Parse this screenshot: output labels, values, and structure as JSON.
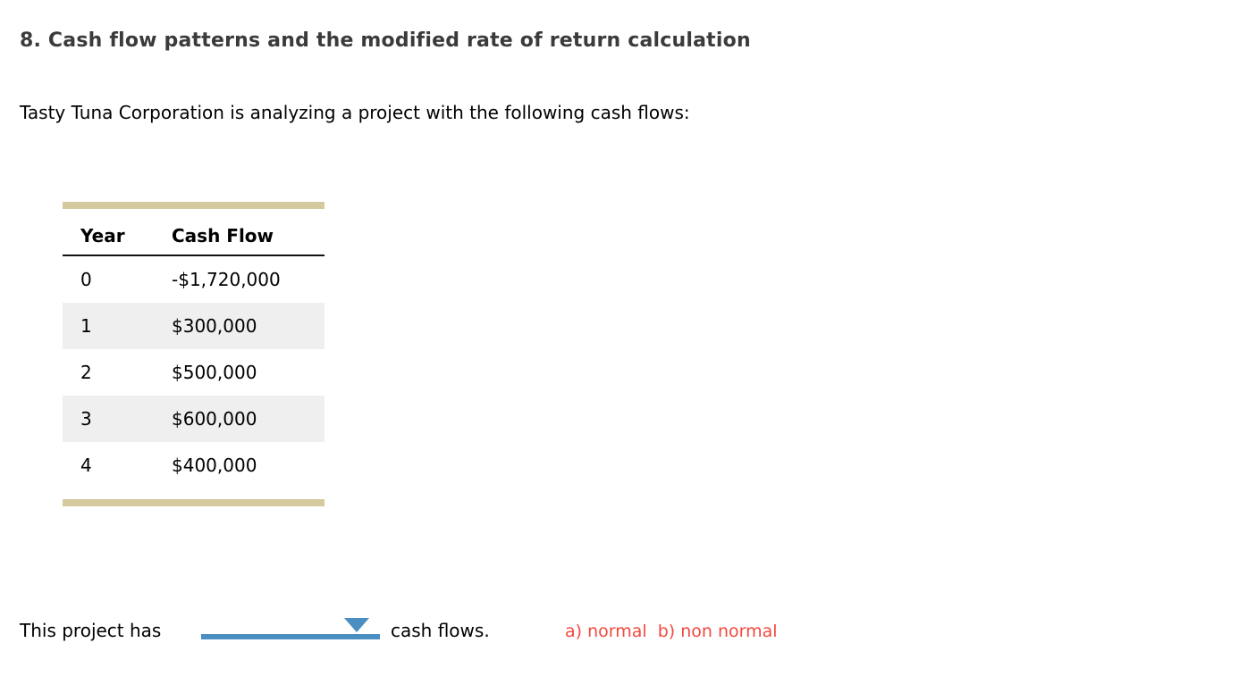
{
  "page": {
    "background": "#ffffff"
  },
  "heading": {
    "text": "8. Cash flow patterns and the modified rate of return calculation",
    "color": "#3b3b3b"
  },
  "intro": {
    "text": "Tasty Tuna Corporation is analyzing a project with the following cash flows:"
  },
  "cash_flow_table": {
    "headers": {
      "year": "Year",
      "cash_flow": "Cash Flow"
    },
    "rows": [
      {
        "year": "0",
        "cash_flow": "-$1,720,000"
      },
      {
        "year": "1",
        "cash_flow": "$300,000"
      },
      {
        "year": "2",
        "cash_flow": "$500,000"
      },
      {
        "year": "3",
        "cash_flow": "$600,000"
      },
      {
        "year": "4",
        "cash_flow": "$400,000"
      }
    ],
    "accent_bar_color": "#d5ca9d",
    "stripe_color": "#efefef"
  },
  "question": {
    "prefix": "This project has",
    "suffix": "cash flows.",
    "dropdown": {
      "selected_value": "",
      "accent_color": "#4b8ec1",
      "icon": "chevron-down-icon"
    },
    "answer_hint": {
      "text": "a) normal  b) non normal",
      "color": "#f2493f"
    }
  }
}
